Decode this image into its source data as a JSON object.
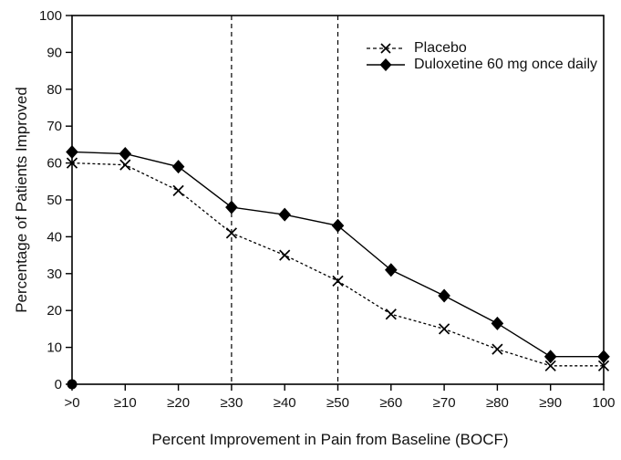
{
  "figure": {
    "background_color": "#ffffff",
    "line_color": "#000000",
    "text_color": "#111111"
  },
  "legend": {
    "items": [
      {
        "label": "Placebo",
        "marker": "x",
        "line_style": "dashed"
      },
      {
        "label": "Duloxetine 60 mg once daily",
        "marker": "diamond",
        "line_style": "solid"
      }
    ]
  },
  "chart_data": {
    "type": "line",
    "title": "",
    "xlabel": "Percent Improvement in Pain from Baseline (BOCF)",
    "ylabel": "Percentage of Patients Improved",
    "categories": [
      ">0",
      "≥10",
      "≥20",
      "≥30",
      "≥40",
      "≥50",
      "≥60",
      "≥70",
      "≥80",
      "≥90",
      "100"
    ],
    "y_ticks": [
      0,
      10,
      20,
      30,
      40,
      50,
      60,
      70,
      80,
      90,
      100
    ],
    "ylim": [
      0,
      100
    ],
    "grid": false,
    "legend_position": "upper-right-inside",
    "reference_lines_x": [
      "≥30",
      "≥50"
    ],
    "origin_marker": {
      "category": ">0",
      "value": 0
    },
    "series": [
      {
        "name": "Placebo",
        "style": "dashed",
        "marker": "x",
        "values": [
          60,
          59.5,
          52.5,
          41,
          35,
          28,
          19,
          15,
          9.5,
          5,
          5
        ]
      },
      {
        "name": "Duloxetine 60 mg once daily",
        "style": "solid",
        "marker": "diamond",
        "values": [
          63,
          62.5,
          59,
          48,
          46,
          43,
          31,
          24,
          16.5,
          7.5,
          7.5
        ]
      }
    ]
  }
}
